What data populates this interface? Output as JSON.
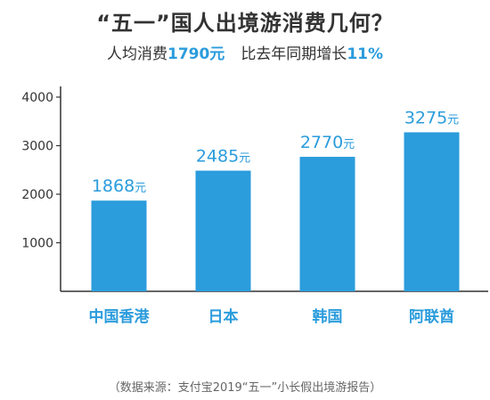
{
  "header": {
    "title": "“五一”国人出境游消费几何？",
    "subtitle_prefix": "人均消费",
    "subtitle_amount": "1790元",
    "subtitle_middle": "比去年同期增长",
    "subtitle_growth": "11%"
  },
  "footer": {
    "source": "（数据来源：支付宝2019“五一”小长假出境游报告）"
  },
  "colors": {
    "bar": "#2b9cdc",
    "label": "#2b9cdc",
    "axis": "#333333",
    "text": "#333333"
  },
  "chart_data": {
    "type": "bar",
    "categories": [
      "中国香港",
      "日本",
      "韩国",
      "阿联酋"
    ],
    "values": [
      1868,
      2485,
      2770,
      3275
    ],
    "value_labels": [
      "1868元",
      "2485元",
      "2770元",
      "3275元"
    ],
    "ylim": [
      0,
      4000
    ],
    "yticks": [
      1000,
      2000,
      3000,
      4000
    ],
    "ytick_labels": [
      "1000",
      "2000",
      "3000",
      "4000"
    ],
    "grid": false,
    "legend": "none"
  }
}
